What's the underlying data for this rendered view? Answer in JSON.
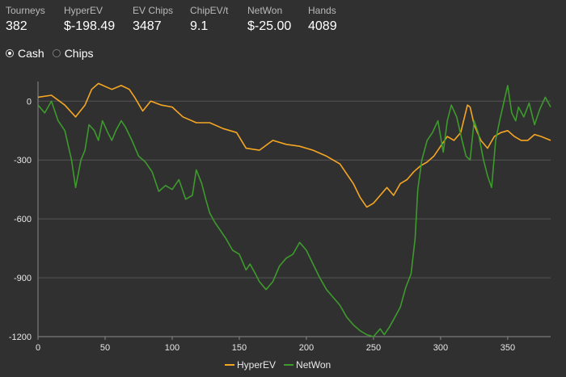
{
  "stats": [
    {
      "label": "Tourneys",
      "value": "382"
    },
    {
      "label": "HyperEV",
      "value": "$-198.49"
    },
    {
      "label": "EV Chips",
      "value": "3487"
    },
    {
      "label": "ChipEV/t",
      "value": "9.1"
    },
    {
      "label": "NetWon",
      "value": "$-25.00"
    },
    {
      "label": "Hands",
      "value": "4089"
    }
  ],
  "mode": {
    "options": [
      {
        "label": "Cash",
        "checked": true
      },
      {
        "label": "Chips",
        "checked": false
      }
    ]
  },
  "chart_data": {
    "type": "line",
    "title": "",
    "xlabel": "",
    "ylabel": "",
    "xlim": [
      0,
      382
    ],
    "ylim": [
      -1200,
      100
    ],
    "x_ticks": [
      0,
      50,
      100,
      150,
      200,
      250,
      300,
      350
    ],
    "y_ticks": [
      0,
      -300,
      -600,
      -900,
      -1200
    ],
    "grid": "horizontal",
    "legend": "bottom-center",
    "series": [
      {
        "name": "HyperEV",
        "color": "#f5a623",
        "points": [
          [
            0,
            20
          ],
          [
            10,
            30
          ],
          [
            20,
            -20
          ],
          [
            28,
            -80
          ],
          [
            35,
            -20
          ],
          [
            40,
            60
          ],
          [
            45,
            90
          ],
          [
            55,
            60
          ],
          [
            62,
            80
          ],
          [
            68,
            60
          ],
          [
            72,
            20
          ],
          [
            78,
            -50
          ],
          [
            84,
            0
          ],
          [
            92,
            -20
          ],
          [
            100,
            -30
          ],
          [
            108,
            -80
          ],
          [
            118,
            -110
          ],
          [
            128,
            -110
          ],
          [
            138,
            -140
          ],
          [
            148,
            -160
          ],
          [
            155,
            -240
          ],
          [
            165,
            -250
          ],
          [
            175,
            -200
          ],
          [
            185,
            -220
          ],
          [
            195,
            -230
          ],
          [
            205,
            -250
          ],
          [
            215,
            -280
          ],
          [
            225,
            -320
          ],
          [
            235,
            -420
          ],
          [
            240,
            -490
          ],
          [
            245,
            -540
          ],
          [
            250,
            -520
          ],
          [
            255,
            -480
          ],
          [
            260,
            -440
          ],
          [
            265,
            -480
          ],
          [
            270,
            -420
          ],
          [
            275,
            -400
          ],
          [
            280,
            -360
          ],
          [
            285,
            -330
          ],
          [
            290,
            -310
          ],
          [
            295,
            -280
          ],
          [
            300,
            -230
          ],
          [
            305,
            -180
          ],
          [
            310,
            -200
          ],
          [
            315,
            -160
          ],
          [
            320,
            -20
          ],
          [
            322,
            -30
          ],
          [
            325,
            -120
          ],
          [
            330,
            -200
          ],
          [
            335,
            -240
          ],
          [
            340,
            -180
          ],
          [
            345,
            -160
          ],
          [
            350,
            -150
          ],
          [
            355,
            -180
          ],
          [
            360,
            -200
          ],
          [
            365,
            -200
          ],
          [
            370,
            -170
          ],
          [
            375,
            -180
          ],
          [
            382,
            -200
          ]
        ]
      },
      {
        "name": "NetWon",
        "color": "#3d9a2c",
        "points": [
          [
            0,
            -20
          ],
          [
            5,
            -60
          ],
          [
            10,
            0
          ],
          [
            15,
            -100
          ],
          [
            20,
            -150
          ],
          [
            25,
            -300
          ],
          [
            28,
            -440
          ],
          [
            32,
            -300
          ],
          [
            35,
            -250
          ],
          [
            38,
            -120
          ],
          [
            42,
            -150
          ],
          [
            45,
            -200
          ],
          [
            48,
            -100
          ],
          [
            52,
            -160
          ],
          [
            55,
            -200
          ],
          [
            58,
            -150
          ],
          [
            62,
            -100
          ],
          [
            65,
            -130
          ],
          [
            70,
            -200
          ],
          [
            75,
            -280
          ],
          [
            80,
            -310
          ],
          [
            85,
            -360
          ],
          [
            90,
            -460
          ],
          [
            95,
            -430
          ],
          [
            100,
            -450
          ],
          [
            105,
            -400
          ],
          [
            110,
            -500
          ],
          [
            115,
            -480
          ],
          [
            118,
            -350
          ],
          [
            122,
            -420
          ],
          [
            125,
            -500
          ],
          [
            128,
            -570
          ],
          [
            132,
            -620
          ],
          [
            136,
            -660
          ],
          [
            140,
            -700
          ],
          [
            145,
            -760
          ],
          [
            150,
            -780
          ],
          [
            155,
            -860
          ],
          [
            158,
            -830
          ],
          [
            162,
            -880
          ],
          [
            165,
            -920
          ],
          [
            170,
            -960
          ],
          [
            175,
            -920
          ],
          [
            180,
            -840
          ],
          [
            185,
            -800
          ],
          [
            190,
            -780
          ],
          [
            195,
            -720
          ],
          [
            200,
            -760
          ],
          [
            205,
            -830
          ],
          [
            210,
            -900
          ],
          [
            215,
            -960
          ],
          [
            220,
            -1000
          ],
          [
            225,
            -1040
          ],
          [
            230,
            -1100
          ],
          [
            235,
            -1140
          ],
          [
            240,
            -1170
          ],
          [
            245,
            -1190
          ],
          [
            250,
            -1200
          ],
          [
            255,
            -1160
          ],
          [
            258,
            -1190
          ],
          [
            262,
            -1150
          ],
          [
            266,
            -1100
          ],
          [
            270,
            -1050
          ],
          [
            274,
            -950
          ],
          [
            278,
            -880
          ],
          [
            281,
            -700
          ],
          [
            283,
            -450
          ],
          [
            286,
            -300
          ],
          [
            290,
            -200
          ],
          [
            294,
            -160
          ],
          [
            298,
            -100
          ],
          [
            302,
            -260
          ],
          [
            305,
            -100
          ],
          [
            308,
            -20
          ],
          [
            312,
            -80
          ],
          [
            316,
            -200
          ],
          [
            319,
            -280
          ],
          [
            322,
            -300
          ],
          [
            325,
            -100
          ],
          [
            328,
            -160
          ],
          [
            332,
            -300
          ],
          [
            335,
            -380
          ],
          [
            338,
            -440
          ],
          [
            341,
            -200
          ],
          [
            344,
            -100
          ],
          [
            347,
            -10
          ],
          [
            350,
            80
          ],
          [
            353,
            -60
          ],
          [
            356,
            -100
          ],
          [
            358,
            -30
          ],
          [
            362,
            -80
          ],
          [
            366,
            -10
          ],
          [
            370,
            -120
          ],
          [
            374,
            -40
          ],
          [
            378,
            20
          ],
          [
            382,
            -30
          ]
        ]
      }
    ]
  }
}
